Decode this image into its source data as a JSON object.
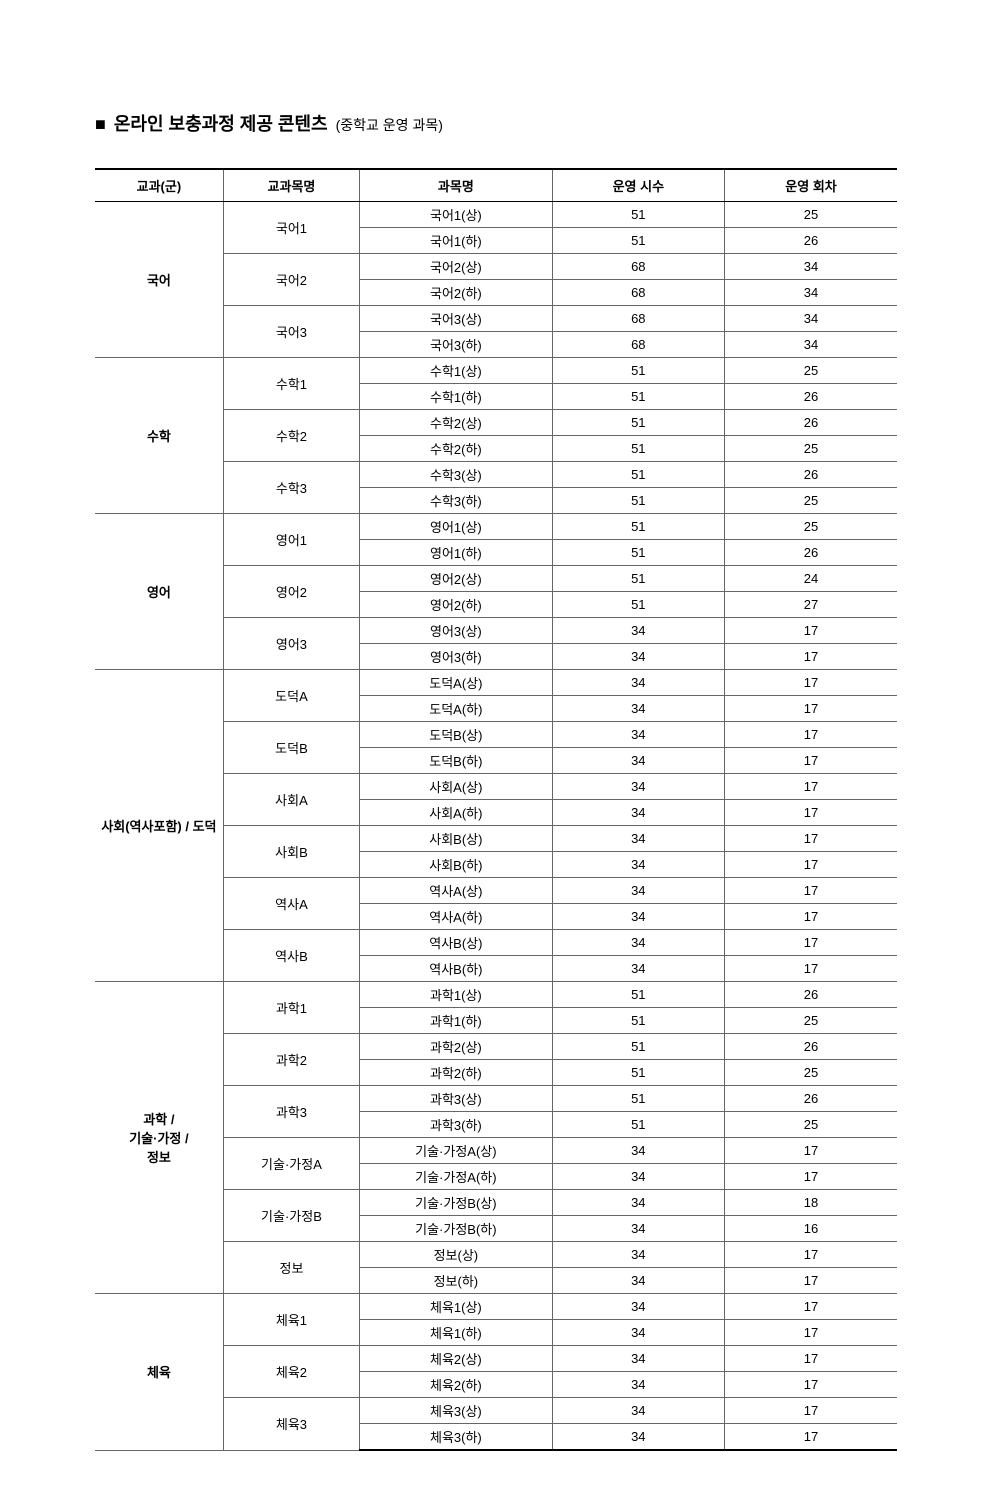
{
  "title": {
    "marker": "■",
    "main": "온라인 보충과정 제공 콘텐츠",
    "sub": "(중학교 운영 과목)"
  },
  "headers": {
    "group": "교과(군)",
    "course": "교과목명",
    "subject": "과목명",
    "hours": "운영 시수",
    "sessions": "운영 회차"
  },
  "groups": [
    {
      "name": "국어",
      "courses": [
        {
          "name": "국어1",
          "subjects": [
            {
              "name": "국어1(상)",
              "hours": 51,
              "sessions": 25
            },
            {
              "name": "국어1(하)",
              "hours": 51,
              "sessions": 26
            }
          ]
        },
        {
          "name": "국어2",
          "subjects": [
            {
              "name": "국어2(상)",
              "hours": 68,
              "sessions": 34
            },
            {
              "name": "국어2(하)",
              "hours": 68,
              "sessions": 34
            }
          ]
        },
        {
          "name": "국어3",
          "subjects": [
            {
              "name": "국어3(상)",
              "hours": 68,
              "sessions": 34
            },
            {
              "name": "국어3(하)",
              "hours": 68,
              "sessions": 34
            }
          ]
        }
      ]
    },
    {
      "name": "수학",
      "courses": [
        {
          "name": "수학1",
          "subjects": [
            {
              "name": "수학1(상)",
              "hours": 51,
              "sessions": 25
            },
            {
              "name": "수학1(하)",
              "hours": 51,
              "sessions": 26
            }
          ]
        },
        {
          "name": "수학2",
          "subjects": [
            {
              "name": "수학2(상)",
              "hours": 51,
              "sessions": 26
            },
            {
              "name": "수학2(하)",
              "hours": 51,
              "sessions": 25
            }
          ]
        },
        {
          "name": "수학3",
          "subjects": [
            {
              "name": "수학3(상)",
              "hours": 51,
              "sessions": 26
            },
            {
              "name": "수학3(하)",
              "hours": 51,
              "sessions": 25
            }
          ]
        }
      ]
    },
    {
      "name": "영어",
      "courses": [
        {
          "name": "영어1",
          "subjects": [
            {
              "name": "영어1(상)",
              "hours": 51,
              "sessions": 25
            },
            {
              "name": "영어1(하)",
              "hours": 51,
              "sessions": 26
            }
          ]
        },
        {
          "name": "영어2",
          "subjects": [
            {
              "name": "영어2(상)",
              "hours": 51,
              "sessions": 24
            },
            {
              "name": "영어2(하)",
              "hours": 51,
              "sessions": 27
            }
          ]
        },
        {
          "name": "영어3",
          "subjects": [
            {
              "name": "영어3(상)",
              "hours": 34,
              "sessions": 17
            },
            {
              "name": "영어3(하)",
              "hours": 34,
              "sessions": 17
            }
          ]
        }
      ]
    },
    {
      "name": "사회(역사포함) / 도덕",
      "courses": [
        {
          "name": "도덕A",
          "subjects": [
            {
              "name": "도덕A(상)",
              "hours": 34,
              "sessions": 17
            },
            {
              "name": "도덕A(하)",
              "hours": 34,
              "sessions": 17
            }
          ]
        },
        {
          "name": "도덕B",
          "subjects": [
            {
              "name": "도덕B(상)",
              "hours": 34,
              "sessions": 17
            },
            {
              "name": "도덕B(하)",
              "hours": 34,
              "sessions": 17
            }
          ]
        },
        {
          "name": "사회A",
          "subjects": [
            {
              "name": "사회A(상)",
              "hours": 34,
              "sessions": 17
            },
            {
              "name": "사회A(하)",
              "hours": 34,
              "sessions": 17
            }
          ]
        },
        {
          "name": "사회B",
          "subjects": [
            {
              "name": "사회B(상)",
              "hours": 34,
              "sessions": 17
            },
            {
              "name": "사회B(하)",
              "hours": 34,
              "sessions": 17
            }
          ]
        },
        {
          "name": "역사A",
          "subjects": [
            {
              "name": "역사A(상)",
              "hours": 34,
              "sessions": 17
            },
            {
              "name": "역사A(하)",
              "hours": 34,
              "sessions": 17
            }
          ]
        },
        {
          "name": "역사B",
          "subjects": [
            {
              "name": "역사B(상)",
              "hours": 34,
              "sessions": 17
            },
            {
              "name": "역사B(하)",
              "hours": 34,
              "sessions": 17
            }
          ]
        }
      ]
    },
    {
      "name": "과학 /\n기술·가정 /\n정보",
      "courses": [
        {
          "name": "과학1",
          "subjects": [
            {
              "name": "과학1(상)",
              "hours": 51,
              "sessions": 26
            },
            {
              "name": "과학1(하)",
              "hours": 51,
              "sessions": 25
            }
          ]
        },
        {
          "name": "과학2",
          "subjects": [
            {
              "name": "과학2(상)",
              "hours": 51,
              "sessions": 26
            },
            {
              "name": "과학2(하)",
              "hours": 51,
              "sessions": 25
            }
          ]
        },
        {
          "name": "과학3",
          "subjects": [
            {
              "name": "과학3(상)",
              "hours": 51,
              "sessions": 26
            },
            {
              "name": "과학3(하)",
              "hours": 51,
              "sessions": 25
            }
          ]
        },
        {
          "name": "기술·가정A",
          "subjects": [
            {
              "name": "기술·가정A(상)",
              "hours": 34,
              "sessions": 17
            },
            {
              "name": "기술·가정A(하)",
              "hours": 34,
              "sessions": 17
            }
          ]
        },
        {
          "name": "기술·가정B",
          "subjects": [
            {
              "name": "기술·가정B(상)",
              "hours": 34,
              "sessions": 18
            },
            {
              "name": "기술·가정B(하)",
              "hours": 34,
              "sessions": 16
            }
          ]
        },
        {
          "name": "정보",
          "subjects": [
            {
              "name": "정보(상)",
              "hours": 34,
              "sessions": 17
            },
            {
              "name": "정보(하)",
              "hours": 34,
              "sessions": 17
            }
          ]
        }
      ]
    },
    {
      "name": "체육",
      "courses": [
        {
          "name": "체육1",
          "subjects": [
            {
              "name": "체육1(상)",
              "hours": 34,
              "sessions": 17
            },
            {
              "name": "체육1(하)",
              "hours": 34,
              "sessions": 17
            }
          ]
        },
        {
          "name": "체육2",
          "subjects": [
            {
              "name": "체육2(상)",
              "hours": 34,
              "sessions": 17
            },
            {
              "name": "체육2(하)",
              "hours": 34,
              "sessions": 17
            }
          ]
        },
        {
          "name": "체육3",
          "subjects": [
            {
              "name": "체육3(상)",
              "hours": 34,
              "sessions": 17
            },
            {
              "name": "체육3(하)",
              "hours": 34,
              "sessions": 17
            }
          ]
        }
      ]
    }
  ],
  "styling": {
    "page_bg": "#ffffff",
    "border_heavy": "#000000",
    "border_light": "#666666",
    "title_fontsize_pt": 18,
    "sub_fontsize_pt": 14,
    "header_fontsize_pt": 13,
    "cell_fontsize_pt": 13,
    "col_widths_pct": [
      16,
      17,
      24,
      21.5,
      21.5
    ]
  }
}
